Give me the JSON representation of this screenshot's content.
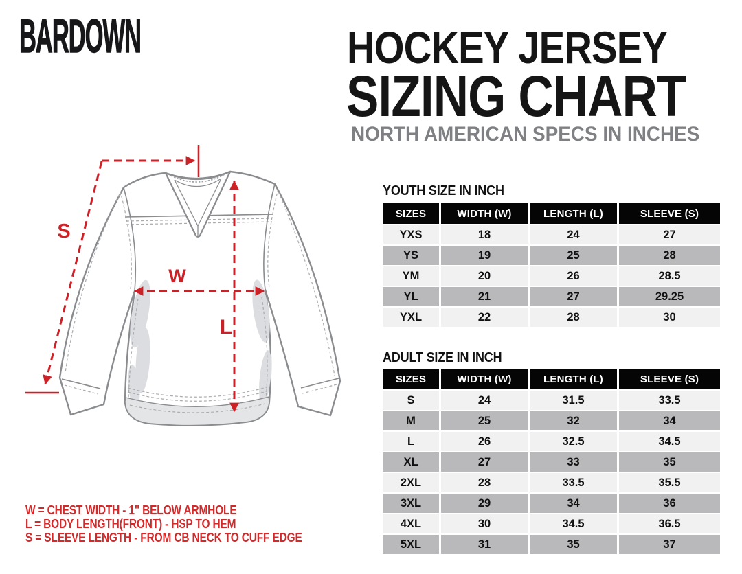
{
  "brand": {
    "logo": "BARDOWN"
  },
  "header": {
    "title_line1": "HOCKEY JERSEY",
    "title_line2": "SIZING CHART",
    "subtitle": "NORTH AMERICAN SPECS IN INCHES"
  },
  "diagram": {
    "labels": {
      "sleeve": "S",
      "width": "W",
      "length": "L"
    }
  },
  "youth_table": {
    "title": "YOUTH SIZE IN INCH",
    "headers": [
      "SIZES",
      "WIDTH (W)",
      "LENGTH (L)",
      "SLEEVE (S)"
    ],
    "rows": [
      [
        "YXS",
        "18",
        "24",
        "27"
      ],
      [
        "YS",
        "19",
        "25",
        "28"
      ],
      [
        "YM",
        "20",
        "26",
        "28.5"
      ],
      [
        "YL",
        "21",
        "27",
        "29.25"
      ],
      [
        "YXL",
        "22",
        "28",
        "30"
      ]
    ]
  },
  "adult_table": {
    "title": "ADULT SIZE IN INCH",
    "headers": [
      "SIZES",
      "WIDTH (W)",
      "LENGTH (L)",
      "SLEEVE (S)"
    ],
    "rows": [
      [
        "S",
        "24",
        "31.5",
        "33.5"
      ],
      [
        "M",
        "25",
        "32",
        "34"
      ],
      [
        "L",
        "26",
        "32.5",
        "34.5"
      ],
      [
        "XL",
        "27",
        "33",
        "35"
      ],
      [
        "2XL",
        "28",
        "33.5",
        "35.5"
      ],
      [
        "3XL",
        "29",
        "34",
        "36"
      ],
      [
        "4XL",
        "30",
        "34.5",
        "36.5"
      ],
      [
        "5XL",
        "31",
        "35",
        "37"
      ]
    ]
  },
  "legend": {
    "lines": [
      "W = CHEST WIDTH - 1\" BELOW ARMHOLE",
      "L = BODY LENGTH(FRONT) - HSP TO HEM",
      "S = SLEEVE LENGTH - FROM CB NECK TO CUFF EDGE"
    ]
  },
  "colors": {
    "accent_red": "#cc2127",
    "legend_red": "#d22a2b",
    "title_black": "#151515",
    "subtitle_gray": "#7e8083",
    "line_gray": "#8a8c8f",
    "shade_gray": "#dcdde0",
    "table_header_bg": "#050505",
    "table_header_text": "#ffffff",
    "row_light": "#f1f1f2",
    "row_gray": "#b9b9bb"
  }
}
